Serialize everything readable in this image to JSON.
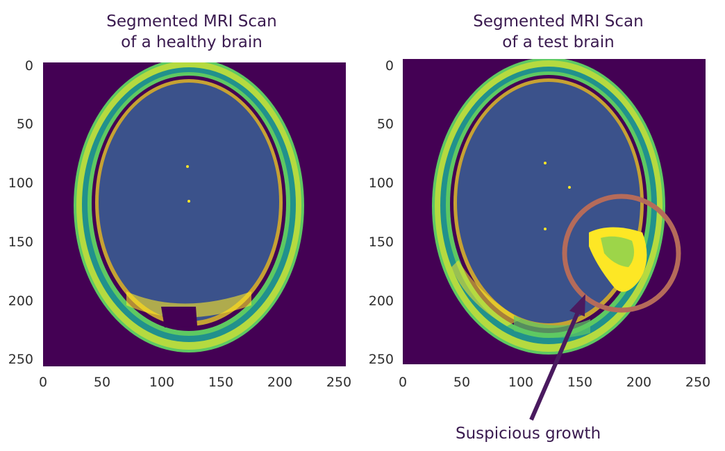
{
  "panels": [
    {
      "title_line1": "Segmented MRI Scan",
      "title_line2": "of a healthy brain",
      "x_ticks": [
        "0",
        "50",
        "100",
        "150",
        "200",
        "250"
      ],
      "y_ticks": [
        "0",
        "50",
        "100",
        "150",
        "200",
        "250"
      ]
    },
    {
      "title_line1": "Segmented MRI Scan",
      "title_line2": "of a test brain",
      "x_ticks": [
        "0",
        "50",
        "100",
        "150",
        "200",
        "250"
      ],
      "y_ticks": [
        "0",
        "50",
        "100",
        "150",
        "200",
        "250"
      ]
    }
  ],
  "annotation": {
    "label": "Suspicious growth",
    "circle_color": "#b56b5a",
    "arrow_color": "#4a1a5f"
  },
  "colors": {
    "background": "#440154",
    "brain_matter": "#3b528b",
    "skull_teal": "#21918c",
    "skull_green": "#5ec962",
    "skull_yellow": "#fde725"
  }
}
